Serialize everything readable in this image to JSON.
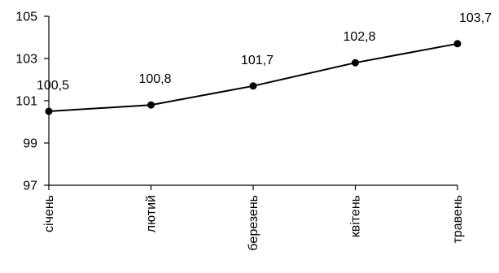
{
  "chart_data": {
    "type": "line",
    "categories": [
      "січень",
      "лютий",
      "березень",
      "квітень",
      "травень"
    ],
    "series": [
      {
        "values": [
          100.5,
          100.8,
          101.7,
          102.8,
          103.7
        ],
        "value_labels": [
          "100,5",
          "100,8",
          "101,7",
          "102,8",
          "103,7"
        ]
      }
    ],
    "ylim": [
      97,
      105
    ],
    "yticks": [
      97,
      99,
      101,
      103,
      105
    ],
    "ytick_labels": [
      "97",
      "99",
      "101",
      "103",
      "105"
    ],
    "grid": false,
    "line_color": "#000000",
    "marker": "circle"
  }
}
